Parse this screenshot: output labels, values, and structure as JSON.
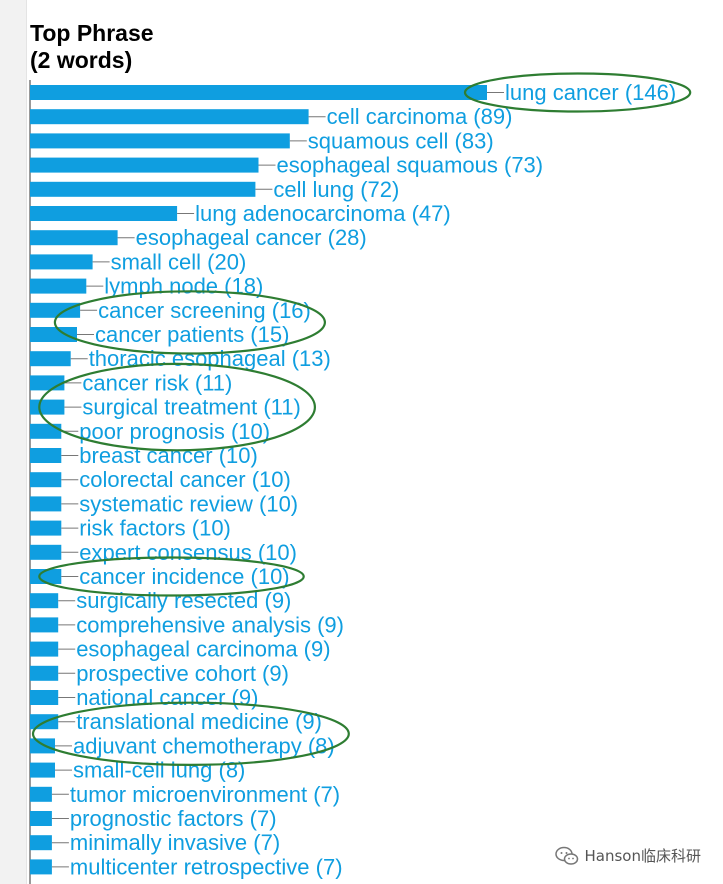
{
  "header": {
    "title_line1": "Top Phrase",
    "title_line2": "(2 words)"
  },
  "watermark": {
    "text": "Hanson临床科研",
    "icon": "wechat-icon"
  },
  "colors": {
    "bar": "#0f9ee0",
    "label": "#0f9ee0",
    "highlight_ellipse": "#2e7d32"
  },
  "chart_data": {
    "type": "bar",
    "orientation": "horizontal",
    "title": "Top Phrase (2 words)",
    "xlabel": "",
    "ylabel": "",
    "xlim": [
      0,
      146
    ],
    "grid": false,
    "legend": "none",
    "categories": [
      "lung cancer",
      "cell carcinoma",
      "squamous cell",
      "esophageal squamous",
      "cell lung",
      "lung adenocarcinoma",
      "esophageal cancer",
      "small cell",
      "lymph node",
      "cancer screening",
      "cancer patients",
      "thoracic esophageal",
      "cancer risk",
      "surgical treatment",
      "poor prognosis",
      "breast cancer",
      "colorectal cancer",
      "systematic review",
      "risk factors",
      "expert consensus",
      "cancer incidence",
      "surgically resected",
      "comprehensive analysis",
      "esophageal carcinoma",
      "prospective cohort",
      "national cancer",
      "translational medicine",
      "adjuvant chemotherapy",
      "small-cell lung",
      "tumor microenvironment",
      "prognostic factors",
      "minimally invasive",
      "multicenter retrospective"
    ],
    "values": [
      146,
      89,
      83,
      73,
      72,
      47,
      28,
      20,
      18,
      16,
      15,
      13,
      11,
      11,
      10,
      10,
      10,
      10,
      10,
      10,
      10,
      9,
      9,
      9,
      9,
      9,
      9,
      8,
      8,
      7,
      7,
      7,
      7
    ],
    "labels": [
      "lung cancer (146)",
      "cell carcinoma (89)",
      "squamous cell (83)",
      "esophageal squamous (73)",
      "cell lung (72)",
      "lung adenocarcinoma (47)",
      "esophageal cancer (28)",
      "small cell (20)",
      "lymph node (18)",
      "cancer screening (16)",
      "cancer patients (15)",
      "thoracic esophageal (13)",
      "cancer risk (11)",
      "surgical treatment (11)",
      "poor prognosis (10)",
      "breast cancer (10)",
      "colorectal cancer (10)",
      "systematic review (10)",
      "risk factors (10)",
      "expert consensus (10)",
      "cancer incidence (10)",
      "surgically resected (9)",
      "comprehensive analysis (9)",
      "esophageal carcinoma (9)",
      "prospective cohort (9)",
      "national cancer (9)",
      "translational medicine (9)",
      "adjuvant chemotherapy (8)",
      "small-cell lung (8)",
      "tumor microenvironment (7)",
      "prognostic factors (7)",
      "minimally invasive (7)",
      "multicenter retrospective (7)"
    ],
    "highlighted_groups": [
      [
        "lung cancer"
      ],
      [
        "cancer screening",
        "cancer patients"
      ],
      [
        "cancer risk",
        "surgical treatment",
        "poor prognosis"
      ],
      [
        "cancer incidence"
      ],
      [
        "translational medicine",
        "adjuvant chemotherapy"
      ]
    ]
  }
}
